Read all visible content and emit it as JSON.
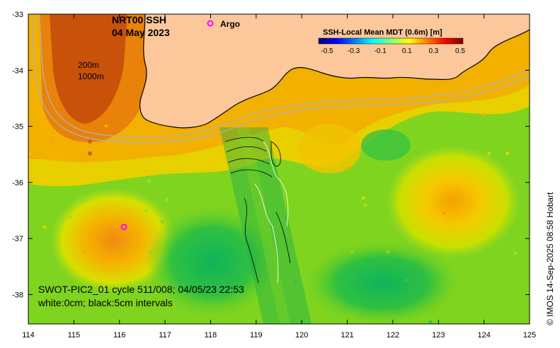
{
  "map": {
    "title_line1": "NRT00 SSH",
    "title_line2": "04 May 2023",
    "legend_marker_label": "Argo",
    "depth_label_1": "200m",
    "depth_label_2": "1000m",
    "caption_line1": "SWOT-PIC2_01 cycle 511/008; 04/05/23 22:53",
    "caption_line2": "white:0cm; black:5cm intervals",
    "credit": "© IMOS 14-Sep-2025 08:58 Hobart",
    "x_ticks": [
      "114",
      "115",
      "116",
      "117",
      "118",
      "119",
      "120",
      "121",
      "122",
      "123",
      "124",
      "125"
    ],
    "y_ticks": [
      "-33",
      "-34",
      "-35",
      "-36",
      "-37",
      "-38"
    ]
  },
  "colorbar": {
    "title": "SSH-Local Mean MDT (0.6m) [m]",
    "ticks": [
      "-0.5",
      "-0.3",
      "-0.1",
      "0.1",
      "0.3",
      "0.5"
    ],
    "colors": [
      "#00007f",
      "#0000ff",
      "#007fff",
      "#00ffff",
      "#7fff7f",
      "#ffff00",
      "#ff7f00",
      "#ff0000",
      "#7f0000"
    ]
  },
  "colors": {
    "land": "#fcc89b",
    "argo_marker": "#ff00ff",
    "sea_base": "#7fd41f"
  }
}
